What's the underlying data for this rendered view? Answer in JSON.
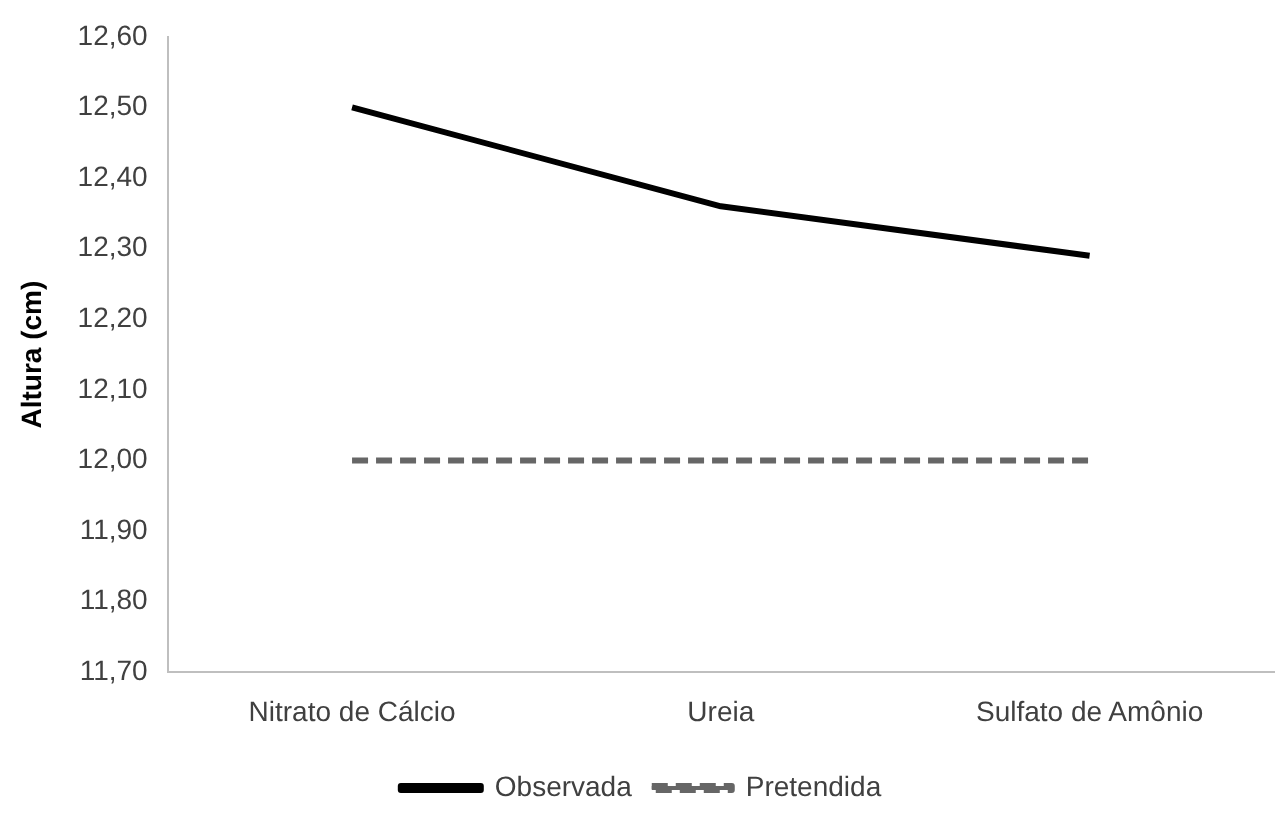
{
  "chart_data": {
    "type": "line",
    "ylabel": "Altura (cm)",
    "categories": [
      "Nitrato de Cálcio",
      "Ureia",
      "Sulfato de Amônio"
    ],
    "series": [
      {
        "name": "Observada",
        "color": "#000000",
        "values": [
          12.5,
          12.36,
          12.29
        ],
        "line_style": "solid"
      },
      {
        "name": "Pretendida",
        "color": "#666666",
        "values": [
          12.0,
          12.0,
          12.0
        ],
        "line_style": "dashed"
      }
    ],
    "ylim": [
      11.7,
      12.6
    ],
    "yticks": [
      {
        "value": 11.7,
        "label": "11,70"
      },
      {
        "value": 11.8,
        "label": "11,80"
      },
      {
        "value": 11.9,
        "label": "11,90"
      },
      {
        "value": 12.0,
        "label": "12,00"
      },
      {
        "value": 12.1,
        "label": "12,10"
      },
      {
        "value": 12.2,
        "label": "12,20"
      },
      {
        "value": 12.3,
        "label": "12,30"
      },
      {
        "value": 12.4,
        "label": "12,40"
      },
      {
        "value": 12.5,
        "label": "12,50"
      },
      {
        "value": 12.6,
        "label": "12,60"
      }
    ],
    "grid": false,
    "legend": "bottom",
    "marker": "none"
  }
}
